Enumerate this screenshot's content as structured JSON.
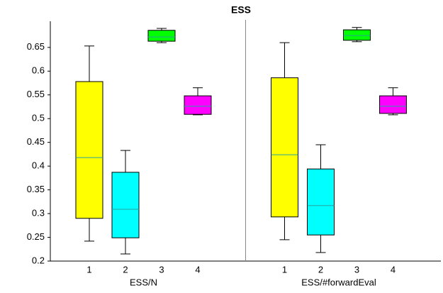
{
  "chart_data": {
    "type": "box",
    "title": "ESS",
    "ylim": [
      0.2,
      0.705
    ],
    "yticks": [
      0.2,
      0.25,
      0.3,
      0.35,
      0.4,
      0.45,
      0.5,
      0.55,
      0.6,
      0.65
    ],
    "colors": [
      "#ffff00",
      "#00ffff",
      "#00ff00",
      "#ff00ff"
    ],
    "median_color": "#2aa0a0",
    "groups": [
      {
        "label": "ESS/N",
        "categories": [
          "1",
          "2",
          "3",
          "4"
        ],
        "boxes": [
          {
            "whislo": 0.242,
            "q1": 0.29,
            "med": 0.418,
            "q3": 0.578,
            "whishi": 0.653
          },
          {
            "whislo": 0.215,
            "q1": 0.249,
            "med": 0.309,
            "q3": 0.387,
            "whishi": 0.433
          },
          {
            "whislo": 0.66,
            "q1": 0.663,
            "med": 0.672,
            "q3": 0.686,
            "whishi": 0.69
          },
          {
            "whislo": 0.508,
            "q1": 0.509,
            "med": 0.526,
            "q3": 0.548,
            "whishi": 0.565
          }
        ]
      },
      {
        "label": "ESS/#forwardEval",
        "categories": [
          "1",
          "2",
          "3",
          "4"
        ],
        "boxes": [
          {
            "whislo": 0.245,
            "q1": 0.293,
            "med": 0.424,
            "q3": 0.586,
            "whishi": 0.66
          },
          {
            "whislo": 0.218,
            "q1": 0.255,
            "med": 0.317,
            "q3": 0.394,
            "whishi": 0.445
          },
          {
            "whislo": 0.662,
            "q1": 0.665,
            "med": 0.675,
            "q3": 0.687,
            "whishi": 0.692
          },
          {
            "whislo": 0.508,
            "q1": 0.511,
            "med": 0.526,
            "q3": 0.548,
            "whishi": 0.565
          }
        ]
      }
    ]
  }
}
